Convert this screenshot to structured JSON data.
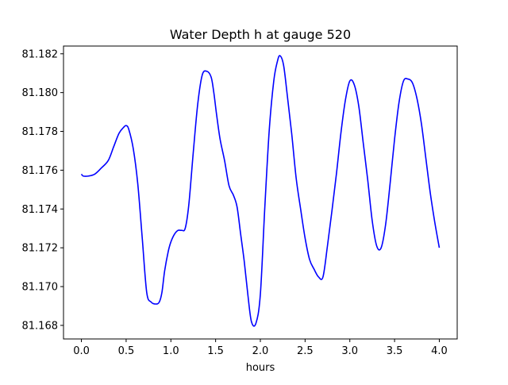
{
  "chart_data": {
    "type": "line",
    "title": "Water Depth h at gauge 520",
    "xlabel": "hours",
    "ylabel": "",
    "xlim": [
      -0.2,
      4.2
    ],
    "ylim": [
      81.1673,
      81.1824
    ],
    "grid": false,
    "x_ticks": [
      {
        "value": 0.0,
        "label": "0.0"
      },
      {
        "value": 0.5,
        "label": "0.5"
      },
      {
        "value": 1.0,
        "label": "1.0"
      },
      {
        "value": 1.5,
        "label": "1.5"
      },
      {
        "value": 2.0,
        "label": "2.0"
      },
      {
        "value": 2.5,
        "label": "2.5"
      },
      {
        "value": 3.0,
        "label": "3.0"
      },
      {
        "value": 3.5,
        "label": "3.5"
      },
      {
        "value": 4.0,
        "label": "4.0"
      }
    ],
    "y_ticks": [
      {
        "value": 81.168,
        "label": "81.168"
      },
      {
        "value": 81.17,
        "label": "81.170"
      },
      {
        "value": 81.172,
        "label": "81.172"
      },
      {
        "value": 81.174,
        "label": "81.174"
      },
      {
        "value": 81.176,
        "label": "81.176"
      },
      {
        "value": 81.178,
        "label": "81.178"
      },
      {
        "value": 81.18,
        "label": "81.180"
      },
      {
        "value": 81.182,
        "label": "81.182"
      }
    ],
    "series": [
      {
        "color": "#0000ff",
        "x": [
          0.0,
          0.02,
          0.08,
          0.15,
          0.22,
          0.3,
          0.36,
          0.42,
          0.47,
          0.5,
          0.53,
          0.58,
          0.63,
          0.68,
          0.73,
          0.78,
          0.83,
          0.87,
          0.9,
          0.93,
          0.97,
          1.0,
          1.04,
          1.08,
          1.12,
          1.16,
          1.2,
          1.25,
          1.3,
          1.35,
          1.4,
          1.45,
          1.48,
          1.51,
          1.55,
          1.6,
          1.65,
          1.7,
          1.74,
          1.78,
          1.82,
          1.86,
          1.9,
          1.95,
          2.0,
          2.05,
          2.1,
          2.15,
          2.19,
          2.22,
          2.26,
          2.3,
          2.35,
          2.4,
          2.45,
          2.5,
          2.55,
          2.6,
          2.65,
          2.7,
          2.75,
          2.8,
          2.85,
          2.9,
          2.95,
          3.0,
          3.05,
          3.1,
          3.15,
          3.2,
          3.25,
          3.3,
          3.35,
          3.4,
          3.45,
          3.5,
          3.55,
          3.6,
          3.65,
          3.7,
          3.75,
          3.8,
          3.85,
          3.9,
          3.95,
          4.0
        ],
        "y": [
          81.1758,
          81.1757,
          81.1757,
          81.1758,
          81.1761,
          81.1765,
          81.1772,
          81.1779,
          81.1782,
          81.1783,
          81.1781,
          81.1771,
          81.1753,
          81.1725,
          81.1697,
          81.1692,
          81.1691,
          81.1692,
          81.1697,
          81.1708,
          81.1718,
          81.1723,
          81.1727,
          81.1729,
          81.1729,
          81.173,
          81.1742,
          81.1769,
          81.1794,
          81.1809,
          81.1811,
          81.1808,
          81.18,
          81.1789,
          81.1776,
          81.1765,
          81.1752,
          81.1747,
          81.1741,
          81.1727,
          81.1713,
          81.1696,
          81.1682,
          81.1681,
          81.1696,
          81.1741,
          81.1781,
          81.1806,
          81.1816,
          81.1819,
          81.1814,
          81.1799,
          81.1779,
          81.1756,
          81.174,
          81.1725,
          81.1714,
          81.1709,
          81.1705,
          81.1705,
          81.1721,
          81.1739,
          81.1758,
          81.1779,
          81.1796,
          81.1806,
          81.1804,
          81.1793,
          81.1774,
          81.1755,
          81.1734,
          81.1721,
          81.172,
          81.1732,
          81.1753,
          81.1776,
          81.1795,
          81.1806,
          81.1807,
          81.1805,
          81.1797,
          81.1784,
          81.1766,
          81.1748,
          81.1733,
          81.172
        ]
      }
    ]
  }
}
